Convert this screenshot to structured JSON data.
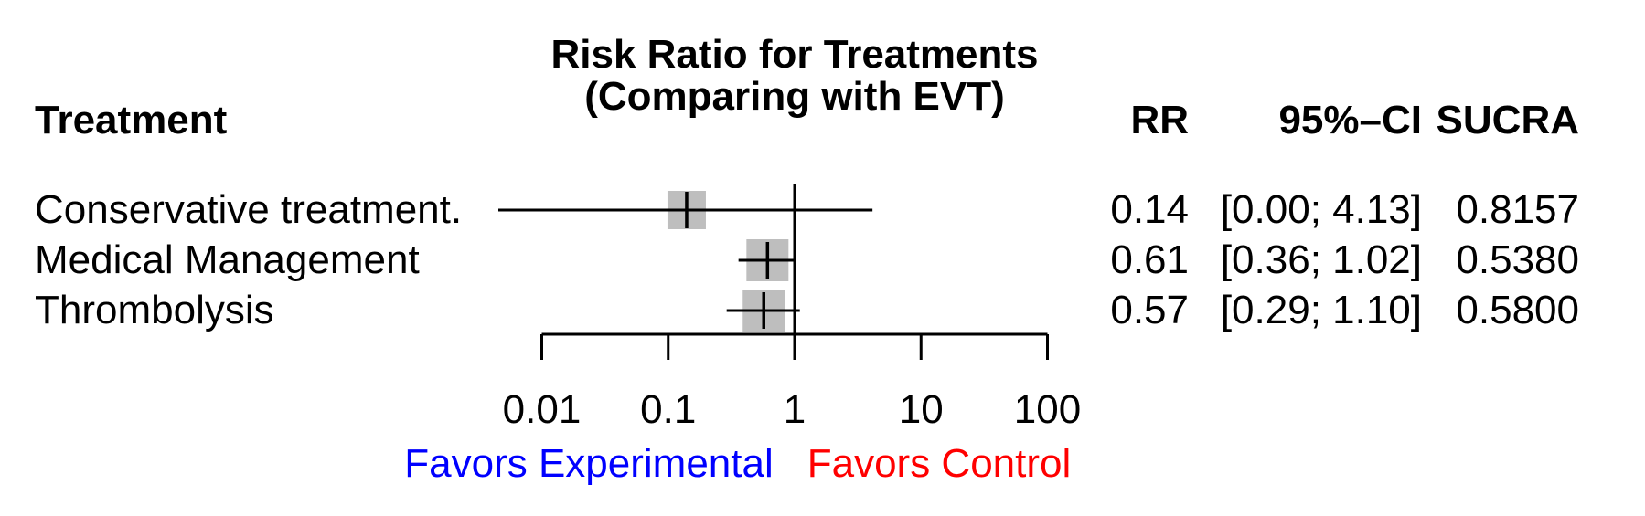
{
  "title": {
    "line1": "Risk Ratio for Treatments",
    "line2": "(Comparing with EVT)"
  },
  "columns": {
    "treatment": "Treatment",
    "rr": "RR",
    "ci": "95%–CI",
    "sucra": "SUCRA"
  },
  "footer": {
    "left_label": "Favors Experimental",
    "right_label": "Favors Control",
    "left_color": "#0000ff",
    "right_color": "#ff0000"
  },
  "colors": {
    "square": "#bebebe",
    "line": "#000000",
    "text": "#000000",
    "background": "#ffffff"
  },
  "chart_data": {
    "type": "forest",
    "title": "Risk Ratio for Treatments (Comparing with EVT)",
    "comparator": "EVT",
    "effect_measure": "RR",
    "x_scale": "log10",
    "x_ticks": [
      0.01,
      0.1,
      1,
      10,
      100
    ],
    "x_tick_labels": [
      "0.01",
      "0.1",
      "1",
      "10",
      "100"
    ],
    "x_range": [
      0.01,
      100
    ],
    "reference_line": 1,
    "axis_annotation_left": "Favors Experimental",
    "axis_annotation_right": "Favors Control",
    "rows": [
      {
        "treatment": "Conservative treatment.",
        "rr": 0.14,
        "ci_low": 0.0,
        "ci_high": 4.13,
        "rr_label": "0.14",
        "ci_label": "[0.00; 4.13]",
        "sucra": "0.8157"
      },
      {
        "treatment": "Medical Management",
        "rr": 0.61,
        "ci_low": 0.36,
        "ci_high": 1.02,
        "rr_label": "0.61",
        "ci_label": "[0.36; 1.02]",
        "sucra": "0.5380"
      },
      {
        "treatment": "Thrombolysis",
        "rr": 0.57,
        "ci_low": 0.29,
        "ci_high": 1.1,
        "rr_label": "0.57",
        "ci_label": "[0.29; 1.10]",
        "sucra": "0.5800"
      }
    ]
  }
}
